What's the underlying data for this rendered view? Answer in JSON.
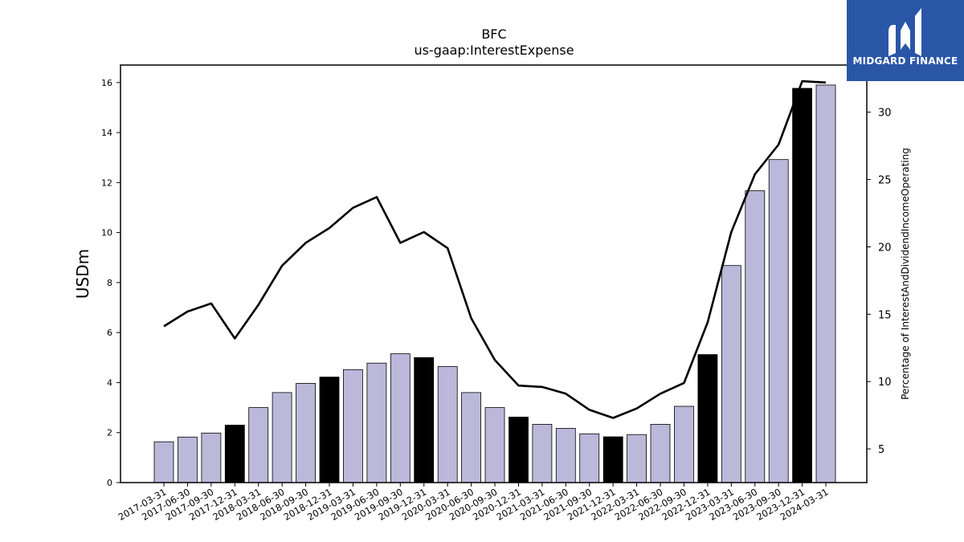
{
  "logo": {
    "name": "MIDGARD FINANCE",
    "icon": "midgard-m-logo-icon"
  },
  "colors": {
    "bar_normal": "#bcb8da",
    "bar_highlight": "#000000",
    "line": "#000000",
    "logo_bg": "#2a56a8"
  },
  "chart_data": {
    "type": "bar",
    "title": "BFC",
    "subtitle": "us-gaap:InterestExpense",
    "ylabel": "USDm",
    "y2label": "Percentage of InterestAndDividendIncomeOperating",
    "ylim": [
      0,
      16.7
    ],
    "y2lim": [
      2.5,
      33.5
    ],
    "yticks": [
      0,
      2,
      4,
      6,
      8,
      10,
      12,
      14,
      16
    ],
    "y2ticks": [
      5,
      10,
      15,
      20,
      25,
      30
    ],
    "categories": [
      "2017-03-31",
      "2017-06-30",
      "2017-09-30",
      "2017-12-31",
      "2018-03-31",
      "2018-06-30",
      "2018-09-30",
      "2018-12-31",
      "2019-03-31",
      "2019-06-30",
      "2019-09-30",
      "2019-12-31",
      "2020-03-31",
      "2020-06-30",
      "2020-09-30",
      "2020-12-31",
      "2021-03-31",
      "2021-06-30",
      "2021-09-30",
      "2021-12-31",
      "2022-03-31",
      "2022-06-30",
      "2022-09-30",
      "2022-12-31",
      "2023-03-31",
      "2023-06-30",
      "2023-09-30",
      "2023-12-31",
      "2024-03-31"
    ],
    "series": [
      {
        "type": "bar",
        "values": [
          1.63,
          1.82,
          1.98,
          2.3,
          3.0,
          3.6,
          3.97,
          4.22,
          4.52,
          4.78,
          5.15,
          5.0,
          4.64,
          3.6,
          3.0,
          2.62,
          2.33,
          2.17,
          1.95,
          1.83,
          1.92,
          2.33,
          3.05,
          5.12,
          8.68,
          11.67,
          12.92,
          15.77,
          15.9
        ],
        "highlight": [
          false,
          false,
          false,
          true,
          false,
          false,
          false,
          true,
          false,
          false,
          false,
          true,
          false,
          false,
          false,
          true,
          false,
          false,
          false,
          true,
          false,
          false,
          false,
          true,
          false,
          false,
          false,
          true,
          false
        ]
      },
      {
        "type": "line",
        "axis": "right",
        "values": [
          14.1,
          15.2,
          15.8,
          13.2,
          15.7,
          18.6,
          20.3,
          21.4,
          22.9,
          23.7,
          20.3,
          21.1,
          19.9,
          14.7,
          11.6,
          9.7,
          9.6,
          9.1,
          7.9,
          7.3,
          8.0,
          9.1,
          9.9,
          14.4,
          21.1,
          25.4,
          27.6,
          32.3,
          32.2
        ]
      }
    ]
  }
}
